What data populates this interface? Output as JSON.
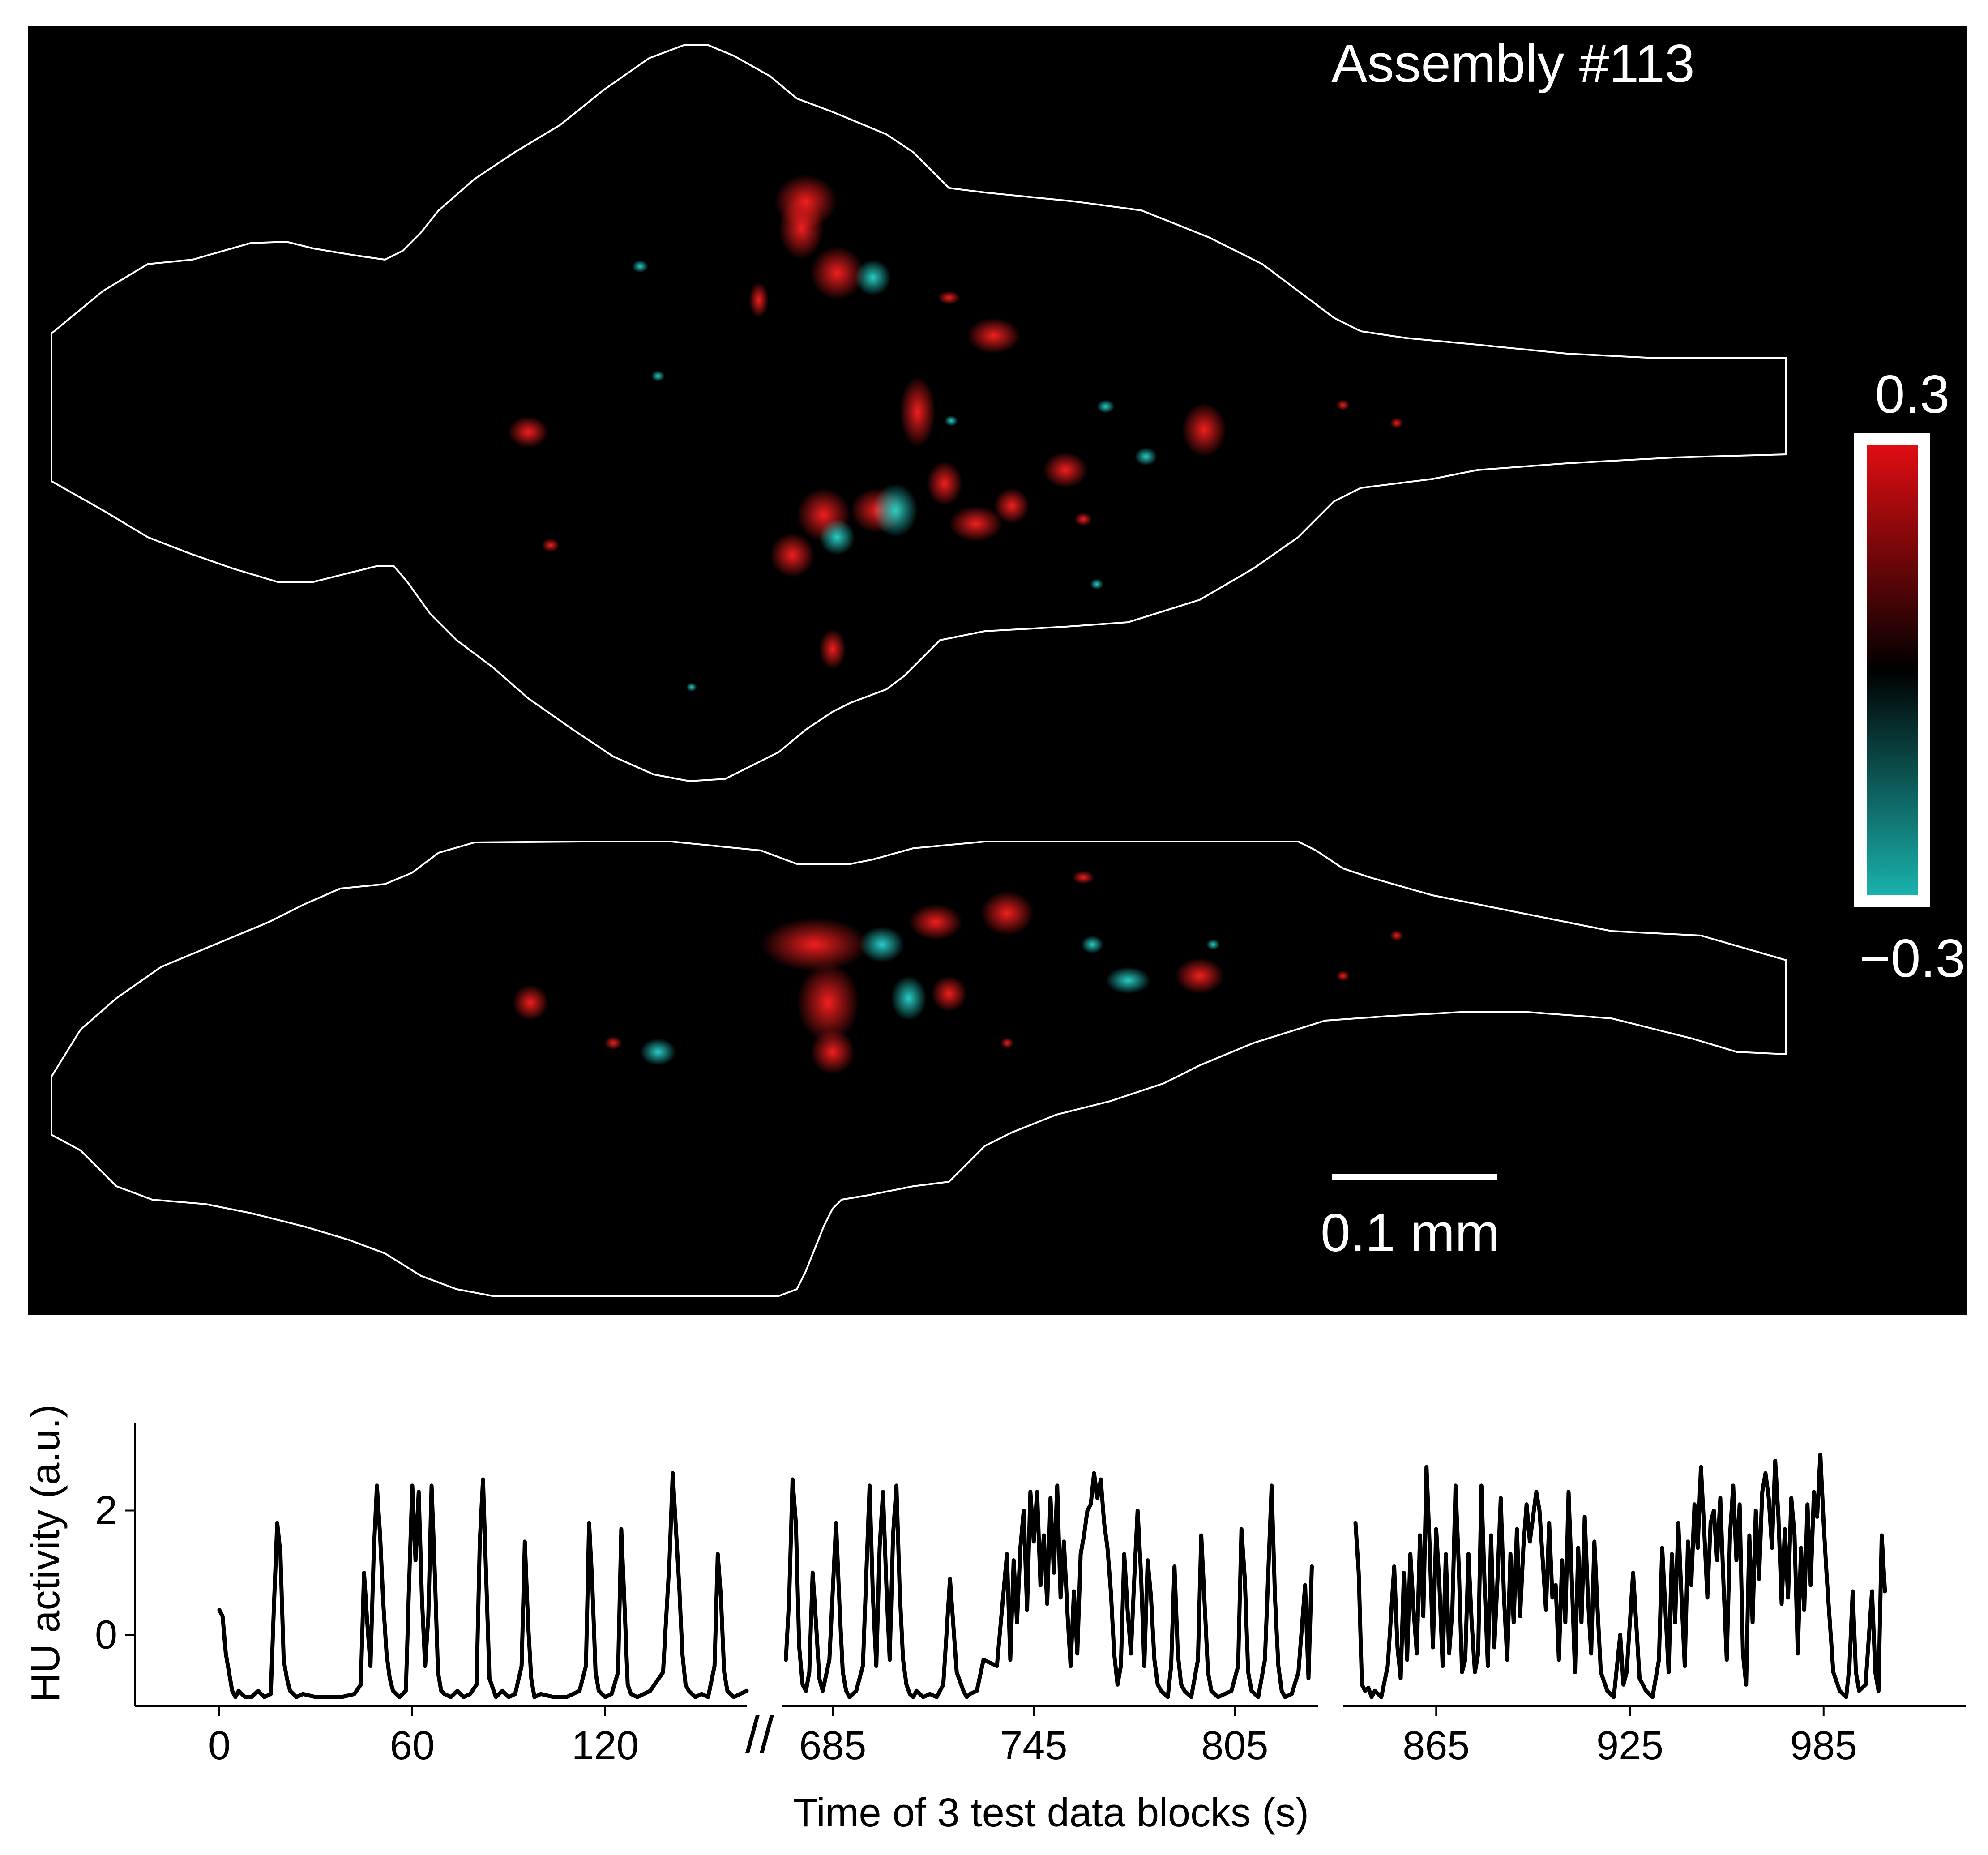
{
  "figure": {
    "assembly_label": "Assembly #113",
    "scalebar_label": "0.1 mm",
    "colorbar": {
      "max_label": "0.3",
      "min_label": "−0.3",
      "vmin": -0.3,
      "vmax": 0.3,
      "colors": {
        "positive": "#e00d12",
        "zero": "#000000",
        "negative": "#1ab2ad"
      }
    }
  },
  "chart_data": {
    "type": "line",
    "title": "",
    "xlabel": "Time of 3 test data blocks (s)",
    "ylabel": "HU activity (a.u.)",
    "ylim": [
      -1.15,
      3.4
    ],
    "yticks": [
      0,
      2
    ],
    "ytick_labels": [
      "0",
      "2"
    ],
    "line_color": "#000000",
    "axis_break": "//",
    "blocks": [
      {
        "xlim": [
          0,
          164
        ],
        "xticks": [
          0,
          60,
          120
        ],
        "xtick_labels": [
          "0",
          "60",
          "120"
        ],
        "x": [
          0,
          1,
          2,
          3,
          4,
          5,
          6,
          8,
          10,
          12,
          14,
          16,
          17,
          18,
          19,
          20,
          21,
          22,
          24,
          26,
          30,
          34,
          38,
          42,
          44,
          45,
          46,
          47,
          48,
          49,
          50,
          51,
          52,
          53,
          54,
          56,
          58,
          59,
          60,
          61,
          62,
          63,
          64,
          65,
          66,
          67,
          68,
          69,
          70,
          72,
          74,
          76,
          78,
          80,
          81,
          82,
          83,
          84,
          86,
          88,
          90,
          92,
          94,
          95,
          96,
          97,
          98,
          100,
          104,
          108,
          112,
          114,
          115,
          116,
          117,
          118,
          120,
          122,
          124,
          125,
          126,
          127,
          128,
          130,
          134,
          138,
          140,
          141,
          142,
          143,
          144,
          145,
          146,
          148,
          150,
          152,
          154,
          155,
          156,
          157,
          158,
          160,
          162,
          164
        ],
        "y": [
          0.4,
          0.3,
          -0.3,
          -0.6,
          -0.9,
          -1.0,
          -0.9,
          -1.0,
          -1.0,
          -0.9,
          -1.0,
          -0.95,
          0.5,
          1.8,
          1.3,
          -0.4,
          -0.7,
          -0.9,
          -1.0,
          -0.95,
          -1.0,
          -1.0,
          -1.0,
          -0.95,
          -0.8,
          1.0,
          0.2,
          -0.5,
          1.3,
          2.4,
          1.6,
          0.5,
          -0.3,
          -0.7,
          -0.9,
          -1.0,
          -0.9,
          0.8,
          2.4,
          1.2,
          2.3,
          0.6,
          -0.5,
          0.3,
          2.4,
          1.0,
          -0.6,
          -0.9,
          -0.95,
          -1.0,
          -0.9,
          -1.0,
          -0.95,
          -0.8,
          1.5,
          2.5,
          0.9,
          -0.7,
          -1.0,
          -0.9,
          -1.0,
          -0.95,
          -0.5,
          1.5,
          0.2,
          -0.7,
          -1.0,
          -0.95,
          -1.0,
          -1.0,
          -0.9,
          -0.5,
          1.8,
          0.8,
          -0.6,
          -0.9,
          -1.0,
          -0.95,
          -0.6,
          1.7,
          0.5,
          -0.8,
          -0.95,
          -1.0,
          -0.9,
          -0.6,
          1.2,
          2.6,
          1.7,
          0.8,
          -0.3,
          -0.8,
          -0.9,
          -1.0,
          -0.95,
          -1.0,
          -0.5,
          1.3,
          0.6,
          -0.6,
          -0.9,
          -1.0,
          -0.95,
          -0.9
        ]
      },
      {
        "xlim": [
          670,
          829
        ],
        "xticks": [
          685,
          745,
          805
        ],
        "xtick_labels": [
          "685",
          "745",
          "805"
        ],
        "x": [
          671,
          672,
          673,
          674,
          675,
          676,
          677,
          678,
          679,
          680,
          681,
          682,
          684,
          686,
          687,
          688,
          689,
          690,
          692,
          694,
          696,
          697,
          698,
          699,
          700,
          701,
          702,
          703,
          704,
          705,
          706,
          707,
          708,
          709,
          710,
          712,
          714,
          716,
          718,
          720,
          722,
          724,
          725,
          726,
          728,
          730,
          734,
          737,
          738,
          739,
          740,
          741,
          742,
          743,
          744,
          745,
          746,
          747,
          748,
          749,
          750,
          751,
          752,
          753,
          754,
          755,
          756,
          757,
          758,
          759,
          760,
          761,
          762,
          763,
          764,
          765,
          766,
          767,
          768,
          769,
          770,
          771,
          772,
          773,
          774,
          775,
          776,
          777,
          778,
          779,
          780,
          781,
          782,
          783,
          784,
          785,
          786,
          787,
          788,
          789,
          790,
          792,
          794,
          795,
          796,
          797,
          798,
          800,
          802,
          804,
          806,
          807,
          808,
          809,
          810,
          812,
          814,
          815,
          816,
          817,
          818,
          819,
          820,
          822,
          824,
          826,
          827,
          828
        ],
        "y": [
          -0.4,
          0.6,
          2.5,
          1.8,
          -0.2,
          -0.8,
          -0.9,
          -0.6,
          1.0,
          0.2,
          -0.7,
          -0.9,
          -0.4,
          1.8,
          0.5,
          -0.6,
          -0.9,
          -1.0,
          -0.9,
          -0.5,
          2.4,
          0.6,
          -0.5,
          1.4,
          2.3,
          0.8,
          -0.4,
          1.6,
          2.4,
          0.7,
          -0.4,
          -0.8,
          -0.95,
          -1.0,
          -0.9,
          -1.0,
          -0.95,
          -1.0,
          -0.8,
          0.9,
          -0.6,
          -0.9,
          -1.0,
          -0.95,
          -0.9,
          -0.4,
          -0.5,
          1.3,
          -0.4,
          1.2,
          0.2,
          1.4,
          2.0,
          0.4,
          2.3,
          1.5,
          2.3,
          0.8,
          1.6,
          0.5,
          2.2,
          1.0,
          2.4,
          0.6,
          1.5,
          0.4,
          -0.5,
          0.7,
          -0.3,
          1.3,
          1.6,
          2.0,
          2.1,
          2.6,
          2.2,
          2.5,
          1.8,
          1.4,
          0.7,
          -0.3,
          -0.8,
          -0.5,
          1.3,
          0.4,
          -0.3,
          0.9,
          2.0,
          1.0,
          -0.5,
          1.2,
          0.6,
          -0.4,
          -0.8,
          -0.9,
          -0.95,
          -1.0,
          -0.5,
          1.1,
          -0.3,
          -0.8,
          -0.9,
          -1.0,
          -0.4,
          1.6,
          0.5,
          -0.6,
          -0.9,
          -1.0,
          -0.95,
          -0.9,
          -0.5,
          1.7,
          0.9,
          -0.6,
          -0.9,
          -1.0,
          -0.4,
          1.0,
          2.4,
          0.6,
          -0.5,
          -0.9,
          -1.0,
          -0.95,
          -0.6,
          0.8,
          -0.7,
          1.1
        ]
      },
      {
        "xlim": [
          840,
          1005
        ],
        "xticks": [
          865,
          925,
          985
        ],
        "xtick_labels": [
          "865",
          "925",
          "985"
        ],
        "x": [
          840,
          841,
          842,
          843,
          844,
          845,
          846,
          848,
          850,
          852,
          853,
          854,
          855,
          856,
          857,
          858,
          859,
          860,
          861,
          862,
          863,
          864,
          865,
          866,
          867,
          868,
          869,
          870,
          871,
          872,
          873,
          874,
          875,
          876,
          877,
          878,
          879,
          880,
          881,
          882,
          883,
          884,
          885,
          886,
          887,
          888,
          889,
          890,
          891,
          892,
          893,
          894,
          895,
          896,
          897,
          898,
          899,
          900,
          901,
          902,
          903,
          904,
          905,
          906,
          907,
          908,
          909,
          910,
          911,
          912,
          913,
          914,
          915,
          916,
          918,
          920,
          922,
          923,
          924,
          926,
          928,
          930,
          932,
          934,
          935,
          936,
          937,
          938,
          939,
          940,
          941,
          942,
          943,
          944,
          945,
          946,
          947,
          948,
          949,
          950,
          951,
          952,
          953,
          954,
          955,
          956,
          957,
          958,
          959,
          960,
          961,
          962,
          963,
          964,
          965,
          966,
          967,
          968,
          969,
          970,
          971,
          972,
          973,
          974,
          975,
          976,
          977,
          978,
          979,
          980,
          981,
          982,
          983,
          984,
          985,
          986,
          988,
          990,
          992,
          993,
          994,
          995,
          996,
          998,
          1000,
          1001,
          1002,
          1003,
          1004
        ],
        "y": [
          1.8,
          1.0,
          -0.8,
          -0.9,
          -0.85,
          -1.0,
          -0.9,
          -1.0,
          -0.5,
          1.1,
          -0.2,
          -0.7,
          1.0,
          -0.4,
          1.3,
          0.4,
          -0.3,
          1.6,
          0.3,
          2.7,
          1.4,
          -0.2,
          1.7,
          0.8,
          -0.5,
          1.3,
          -0.3,
          0.4,
          2.4,
          1.1,
          -0.6,
          -0.4,
          1.3,
          0.2,
          -0.6,
          -0.3,
          2.4,
          0.8,
          -0.5,
          1.6,
          -0.2,
          0.9,
          2.2,
          0.6,
          -0.4,
          1.3,
          0.2,
          1.7,
          0.3,
          1.4,
          2.1,
          1.5,
          1.9,
          2.3,
          2.0,
          1.2,
          0.4,
          1.8,
          0.6,
          0.8,
          -0.4,
          1.2,
          0.2,
          2.3,
          0.9,
          -0.6,
          1.4,
          0.2,
          1.9,
          0.6,
          -0.3,
          1.5,
          0.4,
          -0.6,
          -0.9,
          -1.0,
          0.0,
          -0.8,
          -0.6,
          1.0,
          -0.7,
          -0.9,
          -1.0,
          -0.4,
          1.4,
          0.4,
          -0.6,
          1.3,
          0.2,
          1.8,
          0.6,
          -0.5,
          1.5,
          0.8,
          2.1,
          1.4,
          2.7,
          1.7,
          0.6,
          1.8,
          2.0,
          1.2,
          2.2,
          0.8,
          -0.4,
          1.6,
          2.4,
          1.2,
          2.1,
          -0.3,
          -0.8,
          1.6,
          0.2,
          2.0,
          0.9,
          2.3,
          2.6,
          2.2,
          1.4,
          2.8,
          1.9,
          0.5,
          1.7,
          0.6,
          2.2,
          1.6,
          -0.3,
          1.4,
          0.4,
          2.1,
          0.8,
          2.3,
          1.9,
          2.9,
          1.8,
          0.9,
          -0.6,
          -0.9,
          -1.0,
          -0.5,
          0.7,
          -0.6,
          -0.9,
          -0.8,
          0.7,
          -0.6,
          -0.9,
          1.6,
          0.7
        ]
      }
    ]
  }
}
